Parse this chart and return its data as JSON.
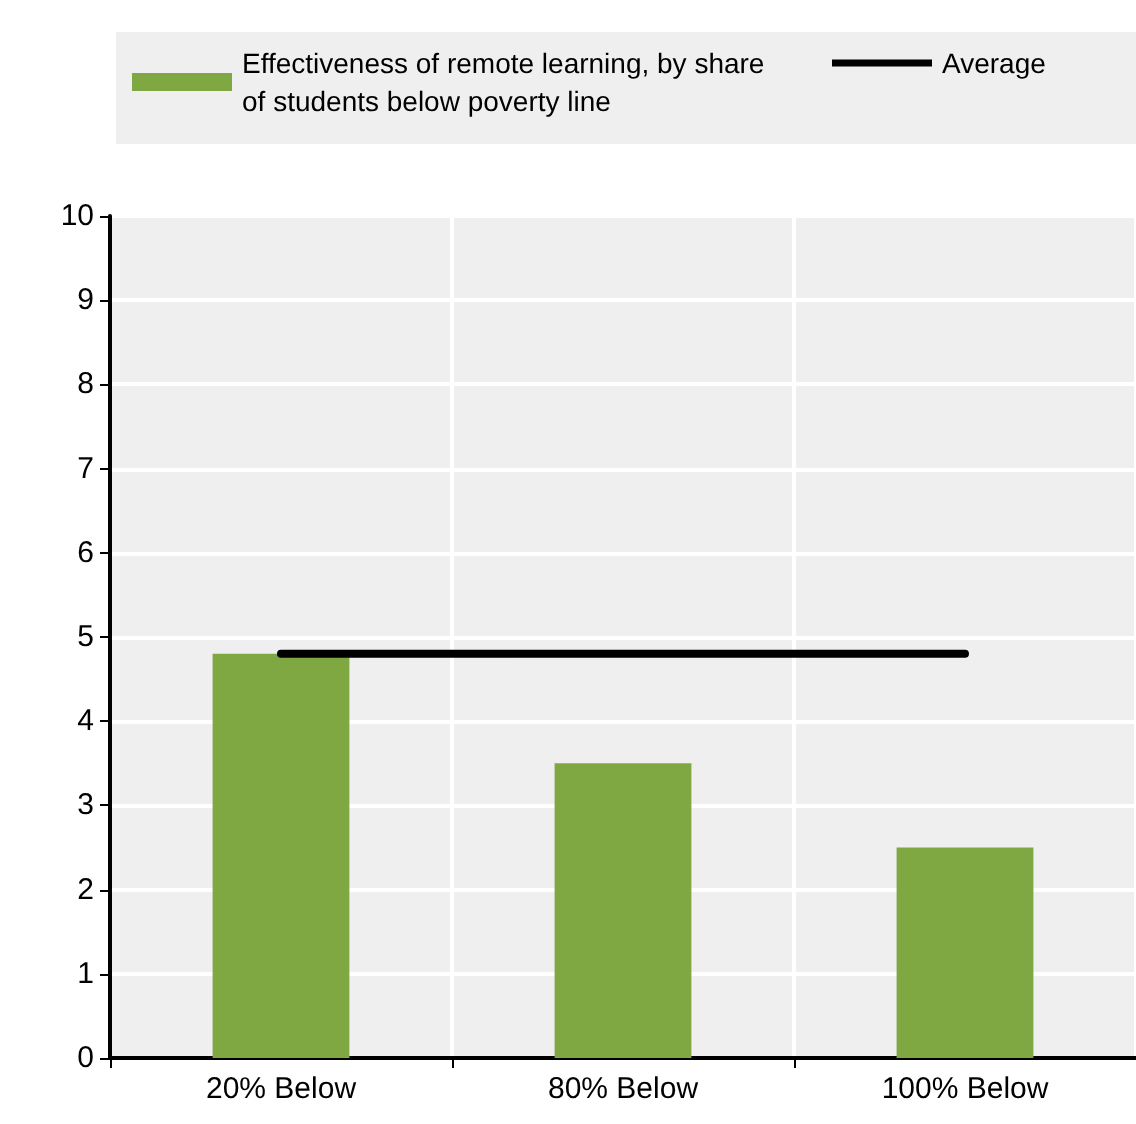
{
  "chart_data": {
    "type": "bar",
    "categories": [
      "20% Below",
      "80% Below",
      "100% Below"
    ],
    "series": [
      {
        "name": "Effectiveness of remote learning, by share of students below poverty line",
        "color": "#7fa843",
        "values": [
          4.8,
          3.5,
          2.5
        ]
      },
      {
        "name": "Average",
        "type": "line",
        "color": "#000000",
        "values": [
          4.8,
          4.8,
          4.8
        ]
      }
    ],
    "ylim": [
      0,
      10
    ],
    "yticks": [
      0,
      1,
      2,
      3,
      4,
      5,
      6,
      7,
      8,
      9,
      10
    ],
    "grid": true,
    "legend": "top",
    "marker": "none",
    "line_style": "solid"
  }
}
